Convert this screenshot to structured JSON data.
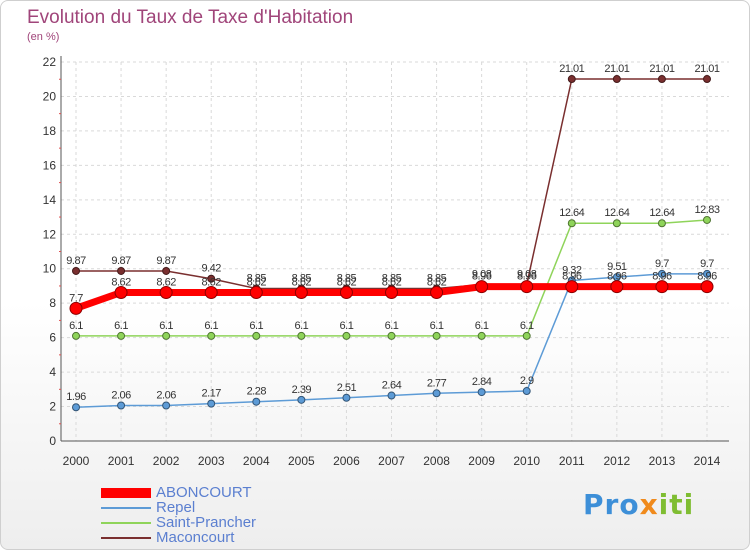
{
  "title": "Evolution du Taux de Taxe d'Habitation",
  "subtitle": "(en %)",
  "logo": {
    "part1": "Pro",
    "part2": "x",
    "part3": "iti"
  },
  "chart_data": {
    "type": "line",
    "x": [
      2000,
      2001,
      2002,
      2003,
      2004,
      2005,
      2006,
      2007,
      2008,
      2009,
      2010,
      2011,
      2012,
      2013,
      2014
    ],
    "ylim": [
      0,
      22
    ],
    "yticks": [
      0,
      2,
      4,
      6,
      8,
      10,
      12,
      14,
      16,
      18,
      20,
      22
    ],
    "grid": true,
    "legend_position": "bottom-left",
    "series": [
      {
        "name": "ABONCOURT",
        "color": "#ff0000",
        "width": 7,
        "values": [
          7.7,
          8.62,
          8.62,
          8.62,
          8.62,
          8.62,
          8.62,
          8.62,
          8.62,
          8.96,
          8.96,
          8.96,
          8.96,
          8.96,
          8.96
        ],
        "labels": [
          "7.7",
          "8.62",
          "8.62",
          "8.62",
          "8.62",
          "8.62",
          "8.62",
          "8.62",
          "8.62",
          "8.96",
          "8.96",
          "8.96",
          "8.96",
          "8.96",
          "8.96"
        ]
      },
      {
        "name": "Repel",
        "color": "#5d9bd6",
        "width": 1.5,
        "values": [
          1.96,
          2.06,
          2.06,
          2.17,
          2.28,
          2.39,
          2.51,
          2.64,
          2.77,
          2.84,
          2.9,
          9.32,
          9.51,
          9.7,
          9.7
        ],
        "labels": [
          "1.96",
          "2.06",
          "2.06",
          "2.17",
          "2.28",
          "2.39",
          "2.51",
          "2.64",
          "2.77",
          "2.84",
          "2.9",
          "9.32",
          "9.51",
          "9.7",
          "9.7"
        ]
      },
      {
        "name": "Saint-Prancher",
        "color": "#8fd45a",
        "width": 1.5,
        "values": [
          6.1,
          6.1,
          6.1,
          6.1,
          6.1,
          6.1,
          6.1,
          6.1,
          6.1,
          6.1,
          6.1,
          12.64,
          12.64,
          12.64,
          12.83
        ],
        "labels": [
          "6.1",
          "6.1",
          "6.1",
          "6.1",
          "6.1",
          "6.1",
          "6.1",
          "6.1",
          "6.1",
          "6.1",
          "6.1",
          "12.64",
          "12.64",
          "12.64",
          "12.83"
        ]
      },
      {
        "name": "Maconcourt",
        "color": "#7a2f2f",
        "width": 1.5,
        "values": [
          9.87,
          9.87,
          9.87,
          9.42,
          8.85,
          8.85,
          8.85,
          8.85,
          8.85,
          9.08,
          9.08,
          21.01,
          21.01,
          21.01,
          21.01
        ],
        "labels": [
          "9.87",
          "9.87",
          "9.87",
          "9.42",
          "8.85",
          "8.85",
          "8.85",
          "8.85",
          "8.85",
          "9.08",
          "9.08",
          "21.01",
          "21.01",
          "21.01",
          "21.01"
        ]
      }
    ]
  }
}
